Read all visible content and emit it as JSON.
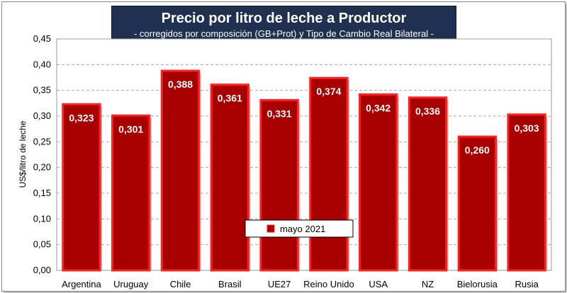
{
  "chart_data": {
    "type": "bar",
    "title": "Precio por litro de leche a Productor",
    "subtitle": "-  corregidos por composición (GB+Prot) y Tipo de Cambio Real Bilateral -",
    "ylabel": "US$/litro de leche",
    "xlabel": "",
    "categories": [
      "Argentina",
      "Uruguay",
      "Chile",
      "Brasil",
      "UE27",
      "Reino Unido",
      "USA",
      "NZ",
      "Bielorusia",
      "Rusia"
    ],
    "series": [
      {
        "name": "mayo 2021",
        "values": [
          0.323,
          0.301,
          0.388,
          0.361,
          0.331,
          0.374,
          0.342,
          0.336,
          0.26,
          0.303
        ],
        "labels": [
          "0,323",
          "0,301",
          "0,388",
          "0,361",
          "0,331",
          "0,374",
          "0,342",
          "0,336",
          "0,260",
          "0,303"
        ],
        "color": "#a80000",
        "border_color": "#ff2020"
      }
    ],
    "ylim": [
      0,
      0.45
    ],
    "yticks": [
      0,
      0.05,
      0.1,
      0.15,
      0.2,
      0.25,
      0.3,
      0.35,
      0.4,
      0.45
    ],
    "ytick_labels": [
      "0,00",
      "0,05",
      "0,10",
      "0,15",
      "0,20",
      "0,25",
      "0,30",
      "0,35",
      "0,40",
      "0,45"
    ],
    "grid": true,
    "legend_position": "bottom-center"
  }
}
